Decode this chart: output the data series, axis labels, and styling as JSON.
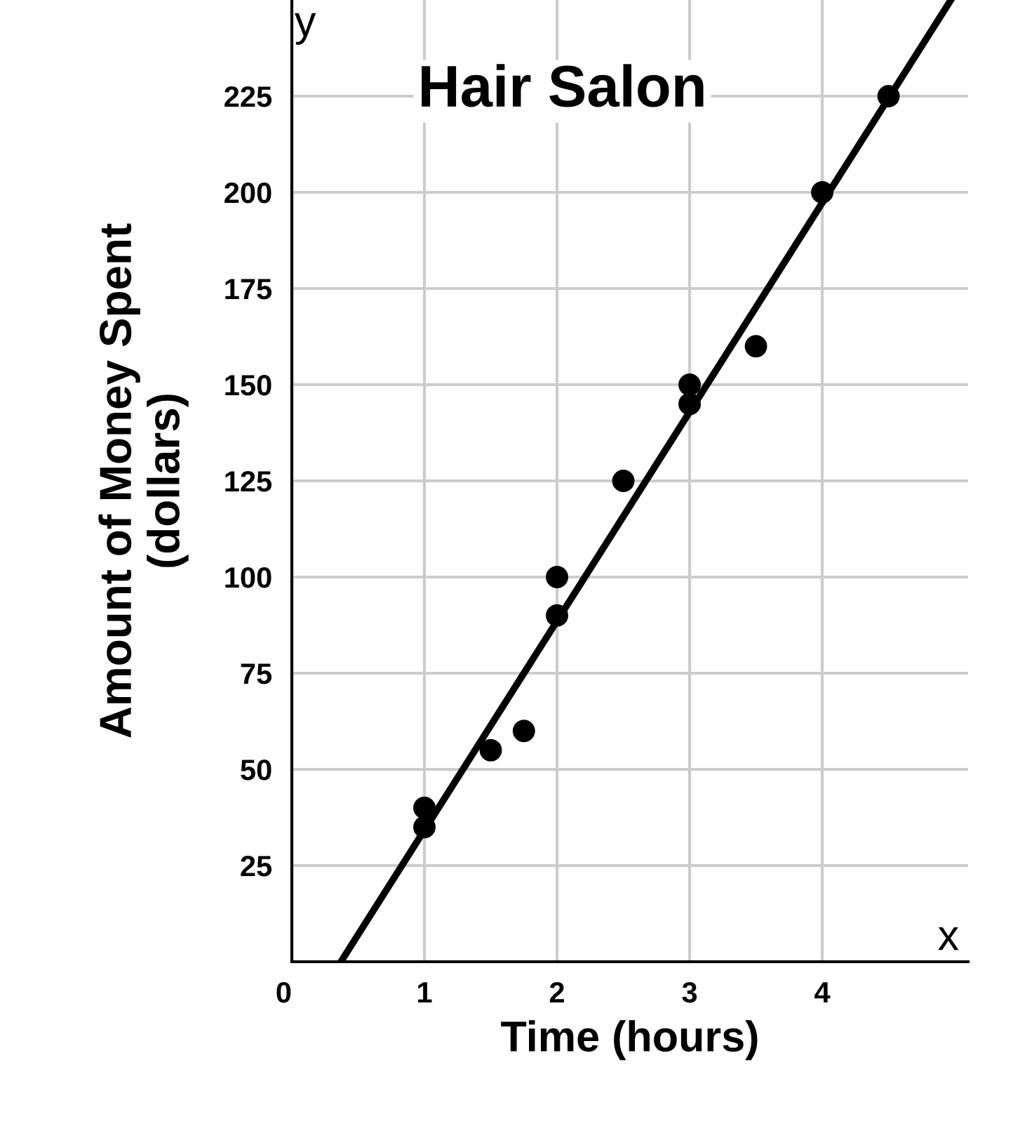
{
  "chart_data": {
    "type": "scatter",
    "title": "Hair Salon",
    "xlabel": "Time (hours)",
    "ylabel": "Amount of Money Spent\n(dollars)",
    "series": [
      {
        "marker": "circle",
        "color": "#000000",
        "x": [
          1,
          1,
          1.5,
          1.75,
          2,
          2,
          2.5,
          3,
          3,
          3.5,
          4,
          4.5
        ],
        "values": [
          40,
          35,
          55,
          60,
          100,
          90,
          125,
          150,
          145,
          160,
          200,
          225
        ]
      },
      {
        "type": "line",
        "color": "#000000",
        "x": [
          0.37,
          4.97
        ],
        "values": [
          0,
          250
        ]
      }
    ],
    "xlim": [
      0,
      5.1
    ],
    "ylim": [
      0,
      250
    ],
    "xticks": [
      {
        "value": 0,
        "label": "0"
      },
      1,
      2,
      3,
      4
    ],
    "yticks": [
      {
        "value": 0,
        "label": null
      },
      25,
      50,
      75,
      100,
      125,
      150,
      175,
      200,
      225
    ],
    "annotations": [
      "x",
      "y"
    ],
    "grid": true,
    "line_style": "solid"
  }
}
